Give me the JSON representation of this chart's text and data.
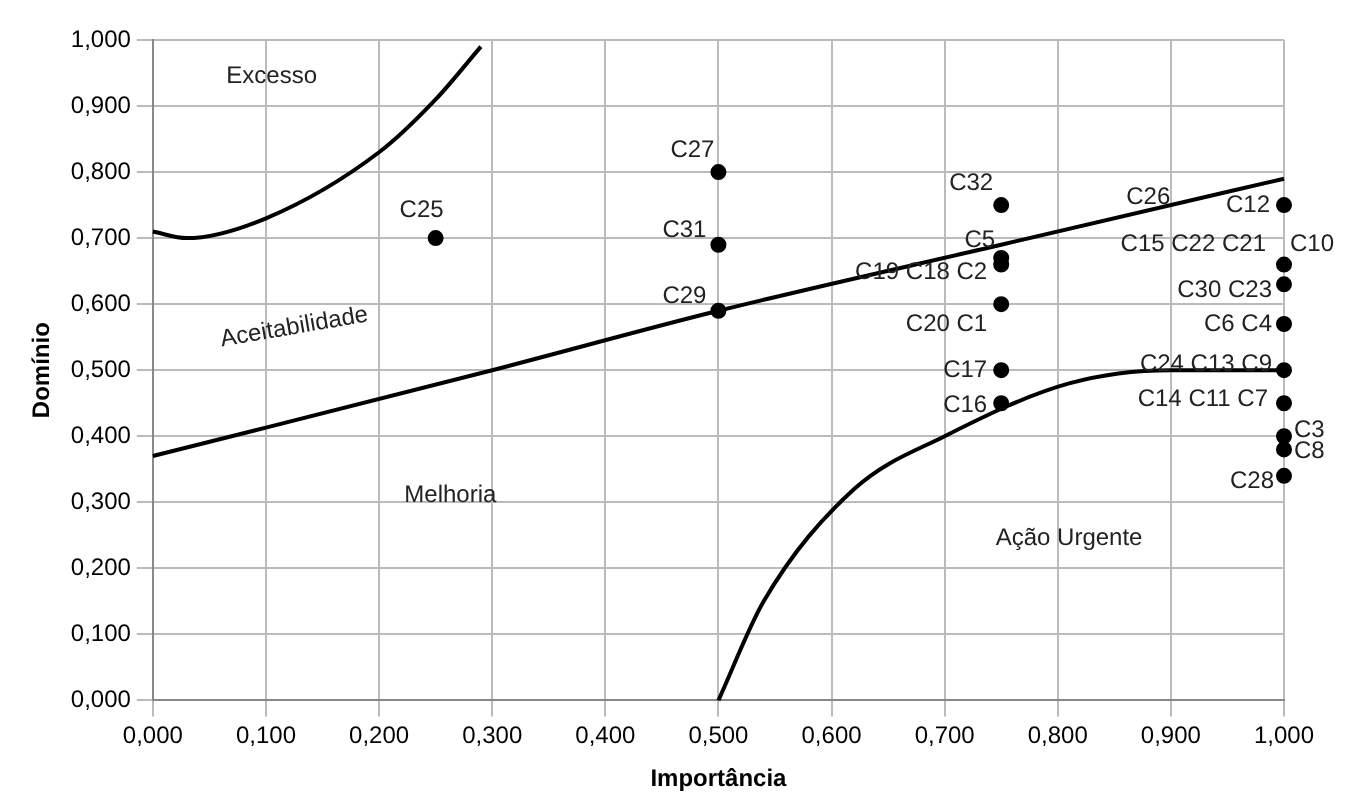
{
  "chart_data": {
    "type": "scatter",
    "xlabel": "Importância",
    "ylabel": "Domínio",
    "xlim": [
      0,
      1
    ],
    "ylim": [
      0,
      1
    ],
    "xticks": [
      {
        "value": 0,
        "label": "0,000"
      },
      {
        "value": 0.1,
        "label": "0,100"
      },
      {
        "value": 0.2,
        "label": "0,200"
      },
      {
        "value": 0.3,
        "label": "0,300"
      },
      {
        "value": 0.4,
        "label": "0,400"
      },
      {
        "value": 0.5,
        "label": "0,500"
      },
      {
        "value": 0.6,
        "label": "0,600"
      },
      {
        "value": 0.7,
        "label": "0,700"
      },
      {
        "value": 0.8,
        "label": "0,800"
      },
      {
        "value": 0.9,
        "label": "0,900"
      },
      {
        "value": 1,
        "label": "1,000"
      }
    ],
    "yticks": [
      {
        "value": 0,
        "label": "0,000"
      },
      {
        "value": 0.1,
        "label": "0,100"
      },
      {
        "value": 0.2,
        "label": "0,200"
      },
      {
        "value": 0.3,
        "label": "0,300"
      },
      {
        "value": 0.4,
        "label": "0,400"
      },
      {
        "value": 0.5,
        "label": "0,500"
      },
      {
        "value": 0.6,
        "label": "0,600"
      },
      {
        "value": 0.7,
        "label": "0,700"
      },
      {
        "value": 0.8,
        "label": "0,800"
      },
      {
        "value": 0.9,
        "label": "0,900"
      },
      {
        "value": 1,
        "label": "1,000"
      }
    ],
    "grid": true,
    "legend": false,
    "series": [
      {
        "color": "#000000",
        "marker": "circle",
        "x": [
          0.25,
          0.5,
          0.5,
          0.5,
          0.75,
          0.75,
          0.75,
          0.75,
          0.75,
          0.75,
          1,
          1,
          1,
          1,
          1,
          1,
          1,
          1,
          1
        ],
        "values": [
          0.7,
          0.8,
          0.69,
          0.59,
          0.75,
          0.67,
          0.66,
          0.6,
          0.5,
          0.45,
          0.75,
          0.66,
          0.63,
          0.57,
          0.5,
          0.45,
          0.4,
          0.38,
          0.34
        ]
      },
      {
        "type": "line",
        "color": "#000000",
        "marker": "none",
        "x": [
          0,
          0.03,
          0.1,
          0.2,
          0.25,
          0.29
        ],
        "values": [
          0.71,
          0.7,
          0.73,
          0.83,
          0.91,
          0.99
        ]
      },
      {
        "type": "line",
        "color": "#000000",
        "marker": "none",
        "x": [
          0,
          0.3,
          0.5,
          0.75,
          1
        ],
        "values": [
          0.37,
          0.5,
          0.59,
          0.69,
          0.79
        ]
      },
      {
        "type": "line",
        "color": "#000000",
        "marker": "none",
        "x": [
          0.5,
          0.54,
          0.62,
          0.7,
          0.81,
          0.9,
          1
        ],
        "values": [
          0,
          0.15,
          0.32,
          0.4,
          0.48,
          0.5,
          0.5
        ]
      }
    ],
    "annotations": [
      {
        "text": "C27",
        "x": 0.5,
        "y": 0.8
      },
      {
        "text": "C31",
        "x": 0.5,
        "y": 0.69
      },
      {
        "text": "C29",
        "x": 0.5,
        "y": 0.59
      },
      {
        "text": "C25",
        "x": 0.25,
        "y": 0.7
      },
      {
        "text": "C32",
        "x": 0.75,
        "y": 0.75
      },
      {
        "text": "C5",
        "x": 0.75,
        "y": 0.67
      },
      {
        "text": "C19 C18 C2",
        "x": 0.75,
        "y": 0.66
      },
      {
        "text": "C20 C1",
        "x": 0.75,
        "y": 0.6
      },
      {
        "text": "C17",
        "x": 0.75,
        "y": 0.5
      },
      {
        "text": "C16",
        "x": 0.75,
        "y": 0.45
      },
      {
        "text": "C26",
        "x": 0.88,
        "y": 0.74
      },
      {
        "text": "C12",
        "x": 1,
        "y": 0.75
      },
      {
        "text": "C15 C22 C21",
        "x": 1,
        "y": 0.66
      },
      {
        "text": "C10",
        "x": 1,
        "y": 0.66
      },
      {
        "text": "C30 C23",
        "x": 1,
        "y": 0.63
      },
      {
        "text": "C6 C4",
        "x": 1,
        "y": 0.57
      },
      {
        "text": "C24 C13 C9",
        "x": 1,
        "y": 0.5
      },
      {
        "text": "C14 C11 C7",
        "x": 1,
        "y": 0.45
      },
      {
        "text": "C3",
        "x": 1,
        "y": 0.4
      },
      {
        "text": "C8",
        "x": 1,
        "y": 0.38
      },
      {
        "text": "C28",
        "x": 1,
        "y": 0.34
      },
      "Excesso",
      "Aceitabilidade",
      "Melhoria",
      "Ação Urgente"
    ]
  }
}
